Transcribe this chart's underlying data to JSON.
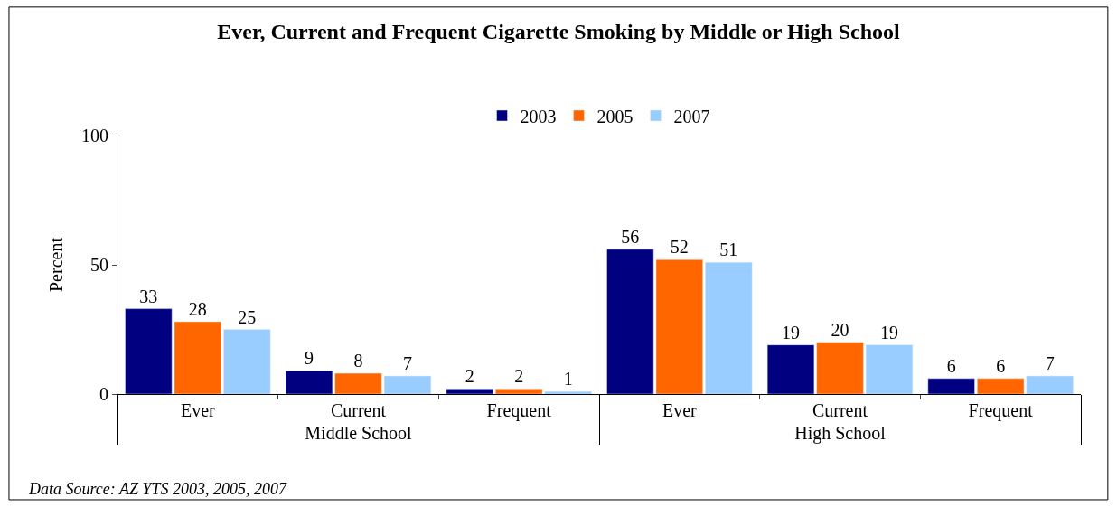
{
  "chart_data": {
    "type": "bar",
    "title": "Ever, Current and Frequent Cigarette Smoking by Middle or High School",
    "ylabel": "Percent",
    "categories": [
      "Ever",
      "Current",
      "Frequent",
      "Ever",
      "Current",
      "Frequent"
    ],
    "series": [
      {
        "name": "2003",
        "color": "#000080",
        "values": [
          33,
          9,
          2,
          56,
          19,
          6
        ]
      },
      {
        "name": "2005",
        "color": "#ff6600",
        "values": [
          28,
          8,
          2,
          52,
          20,
          6
        ]
      },
      {
        "name": "2007",
        "color": "#99ccff",
        "values": [
          25,
          7,
          1,
          51,
          19,
          7
        ]
      }
    ],
    "annotations": [
      "Middle School",
      "High School",
      "Data Source: AZ YTS 2003, 2005, 2007"
    ],
    "ylim": [
      0,
      100
    ],
    "yticks": [
      0,
      50,
      100
    ],
    "legend": "top",
    "data_labels": true
  }
}
